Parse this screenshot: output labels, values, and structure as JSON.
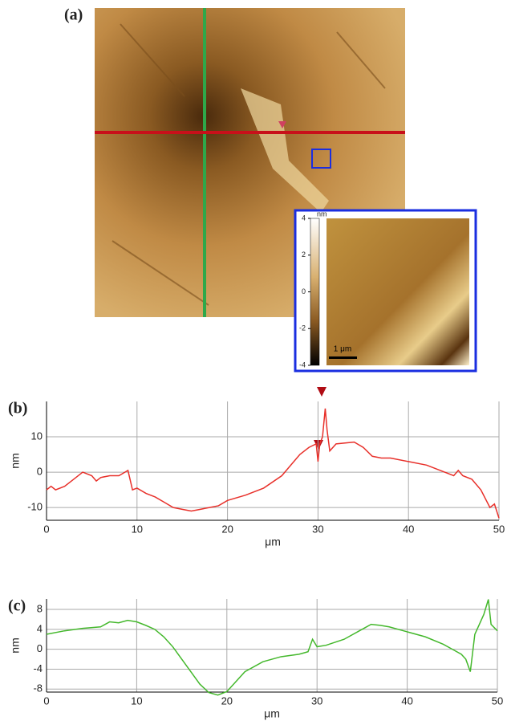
{
  "panel_a": {
    "label": "(a)",
    "colorbar": {
      "unit": "nm",
      "ylim": [
        -4,
        4
      ],
      "ticks": [
        4,
        2,
        0,
        -2,
        -4
      ]
    },
    "scale_bar": "1 μm"
  },
  "chart_data": [
    {
      "type": "line",
      "label": "(b)",
      "xlabel": "μm",
      "ylabel": "nm",
      "color": "#e8302a",
      "x": [
        0,
        0.5,
        1,
        2,
        3,
        4,
        5,
        5.5,
        6,
        7,
        8,
        9,
        9.5,
        10,
        11,
        12,
        13,
        14,
        15,
        16,
        17,
        18,
        19,
        20,
        22,
        24,
        26,
        27,
        28,
        29,
        29.8,
        30,
        30.2,
        30.5,
        30.8,
        31,
        31.3,
        32,
        34,
        35,
        36,
        37,
        38,
        40,
        42,
        44,
        45,
        45.5,
        46,
        47,
        48,
        49,
        49.5,
        50
      ],
      "values": [
        -5,
        -4,
        -5,
        -4,
        -2,
        0,
        -1,
        -2.5,
        -1.5,
        -1,
        -1,
        0.5,
        -5,
        -4.5,
        -6,
        -7,
        -8.5,
        -10,
        -10.5,
        -11,
        -10.5,
        -10,
        -9.5,
        -8,
        -6.5,
        -4.5,
        -1,
        2,
        5,
        7,
        8,
        3,
        8,
        10,
        18,
        12,
        6,
        8,
        8.5,
        7,
        4.5,
        4,
        4,
        3,
        2,
        0,
        -1,
        0.5,
        -1,
        -2,
        -5,
        -10,
        -9,
        -13
      ],
      "xlim": [
        0,
        50
      ],
      "xticks": [
        0,
        10,
        20,
        30,
        40,
        50
      ],
      "ylim": [
        -13.6,
        20
      ],
      "yticks": [
        -10,
        0,
        10
      ],
      "grid": true
    },
    {
      "type": "line",
      "label": "(c)",
      "xlabel": "μm",
      "ylabel": "nm",
      "color": "#44b82c",
      "x": [
        0,
        2,
        4,
        6,
        7,
        8,
        9,
        10,
        11,
        12,
        13,
        14,
        15,
        16,
        17,
        18,
        19,
        20,
        21,
        22,
        24,
        26,
        28,
        29,
        29.5,
        30,
        31,
        33,
        35,
        36,
        37,
        38,
        40,
        42,
        44,
        45,
        46,
        46.5,
        47,
        47.5,
        48,
        48.5,
        49,
        49.3,
        50
      ],
      "values": [
        3,
        3.7,
        4.2,
        4.5,
        5.5,
        5.3,
        5.8,
        5.5,
        4.8,
        4,
        2.5,
        0.5,
        -2,
        -4.5,
        -7,
        -8.7,
        -9.2,
        -8.5,
        -6.5,
        -4.5,
        -2.5,
        -1.5,
        -1,
        -0.5,
        2,
        0.5,
        0.8,
        2,
        4,
        5,
        4.8,
        4.5,
        3.5,
        2.5,
        1,
        0,
        -1,
        -2,
        -4.5,
        3,
        5,
        7,
        10,
        5,
        3.7
      ],
      "xlim": [
        0,
        50
      ],
      "xticks": [
        0,
        10,
        20,
        30,
        40,
        50
      ],
      "ylim": [
        -8.6,
        10.1
      ],
      "yticks": [
        -8,
        -4,
        0,
        4,
        8
      ],
      "grid": true
    }
  ]
}
